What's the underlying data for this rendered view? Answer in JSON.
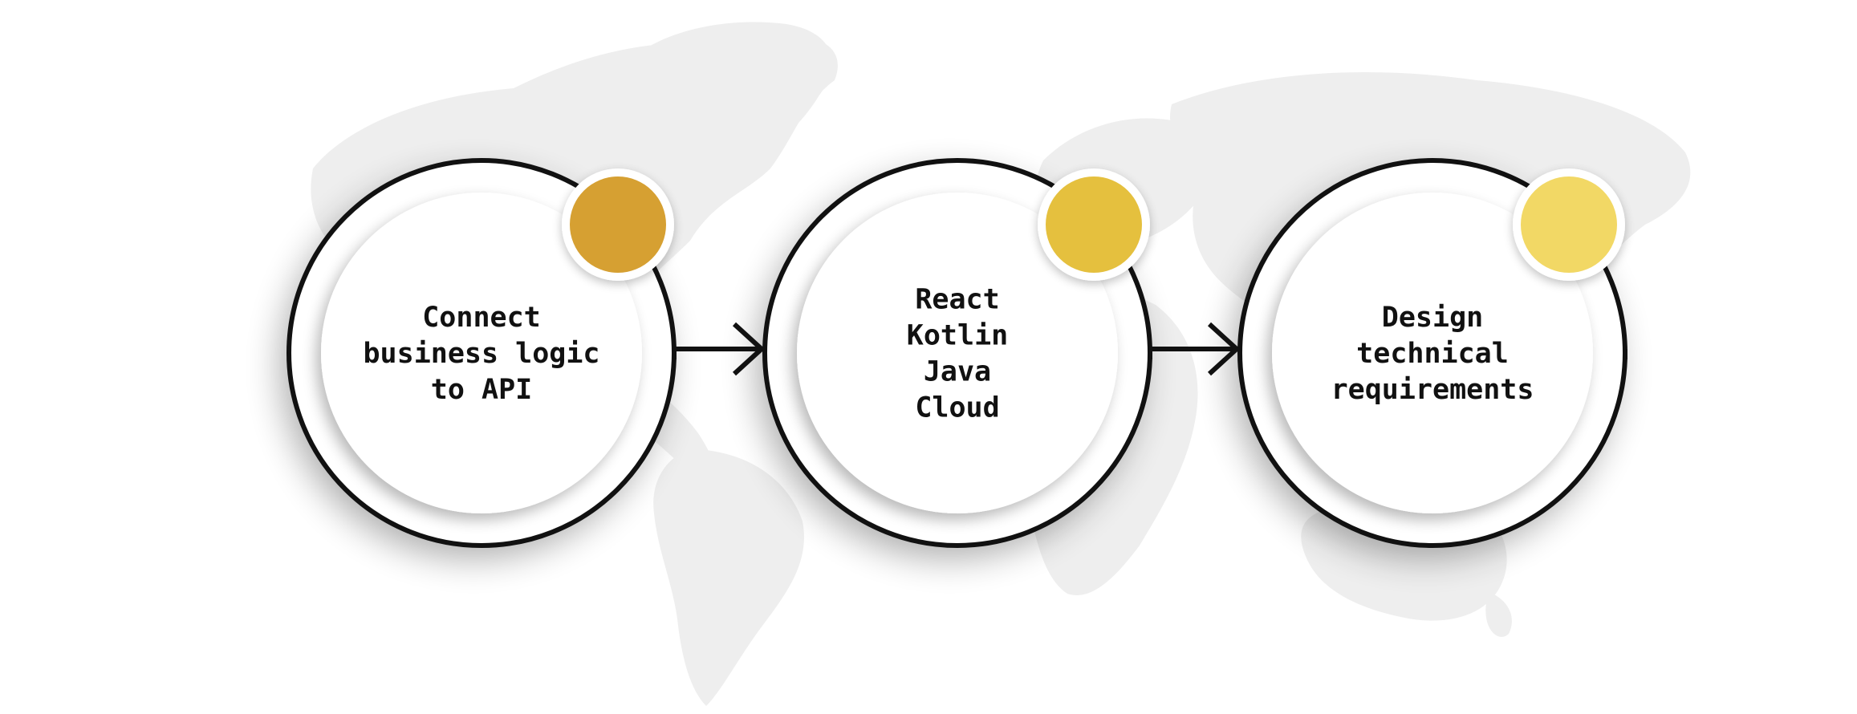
{
  "steps": [
    {
      "lines": [
        "Connect",
        "business logic",
        "to API"
      ],
      "accent_color": "#D6A032"
    },
    {
      "lines": [
        "React",
        "Kotlin",
        "Java",
        "Cloud"
      ],
      "accent_color": "#E5C03E"
    },
    {
      "lines": [
        "Design",
        "technical",
        "requirements"
      ],
      "accent_color": "#F2D865"
    }
  ],
  "colors": {
    "background": "#FFFFFF",
    "map": "#EEEEEE",
    "ring": "#111111",
    "inner_disc": "#FFFFFF"
  }
}
